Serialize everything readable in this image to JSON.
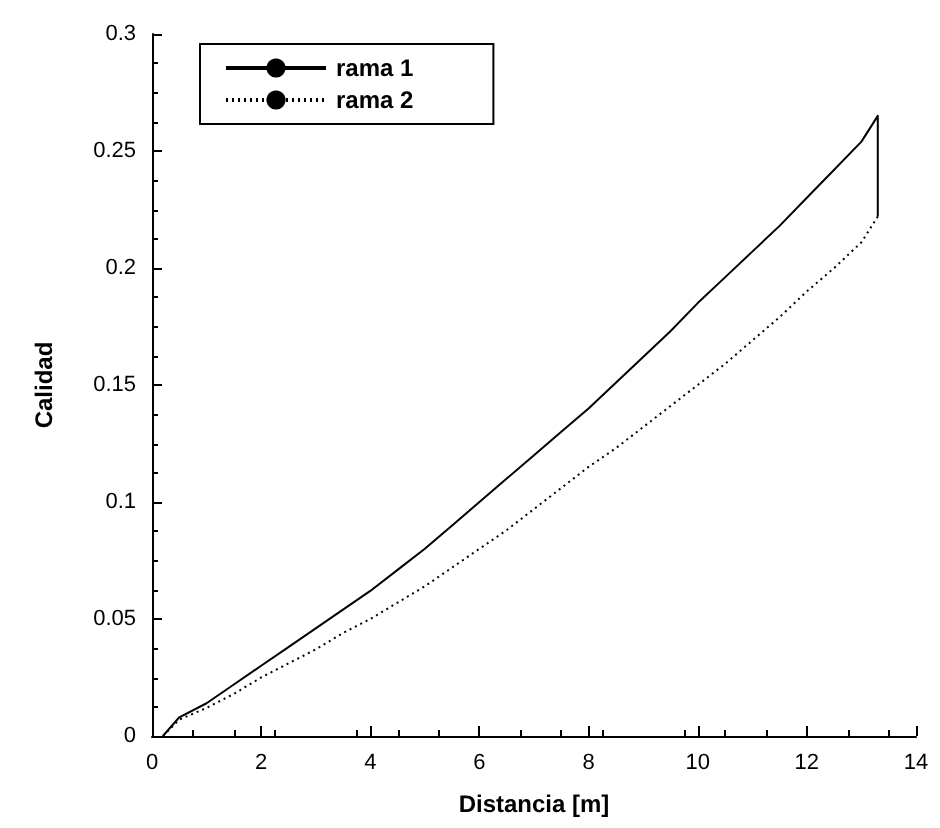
{
  "chart_data": {
    "type": "line",
    "xlabel": "Distancia [m]",
    "ylabel": "Calidad",
    "xlim": [
      0,
      14
    ],
    "xticks": [
      0,
      2,
      4,
      6,
      8,
      10,
      12,
      14
    ],
    "ylim": [
      0,
      0.3
    ],
    "yticks": [
      0,
      0.05,
      0.1,
      0.15,
      0.2,
      0.25,
      0.3
    ],
    "grid": false,
    "legend": "top left",
    "marker": "none",
    "series": [
      {
        "name": "rama 1",
        "color": "#000000",
        "line_style": "solid",
        "x": [
          0.2,
          0.5,
          1,
          1.5,
          2,
          2.5,
          3,
          3.5,
          4,
          4.5,
          5,
          5.5,
          6,
          6.5,
          7,
          7.5,
          8,
          8.5,
          9,
          9.5,
          10,
          10.5,
          11,
          11.5,
          12,
          12.5,
          13,
          13.3,
          13.3
        ],
        "values": [
          0,
          0.008,
          0.014,
          0.022,
          0.03,
          0.038,
          0.046,
          0.054,
          0.062,
          0.071,
          0.08,
          0.09,
          0.1,
          0.11,
          0.12,
          0.13,
          0.14,
          0.151,
          0.162,
          0.173,
          0.185,
          0.196,
          0.207,
          0.218,
          0.23,
          0.242,
          0.254,
          0.265,
          0.222
        ]
      },
      {
        "name": "rama 2",
        "color": "#000000",
        "line_style": "dotted",
        "x": [
          0.2,
          0.5,
          1,
          1.5,
          2,
          2.5,
          3,
          3.5,
          4,
          4.5,
          5,
          5.5,
          6,
          6.5,
          7,
          7.5,
          8,
          8.5,
          9,
          9.5,
          10,
          10.5,
          11,
          11.5,
          12,
          12.5,
          13,
          13.3
        ],
        "values": [
          0,
          0.007,
          0.012,
          0.018,
          0.025,
          0.031,
          0.037,
          0.044,
          0.05,
          0.057,
          0.064,
          0.072,
          0.08,
          0.088,
          0.097,
          0.106,
          0.115,
          0.123,
          0.132,
          0.141,
          0.15,
          0.159,
          0.169,
          0.179,
          0.19,
          0.2,
          0.211,
          0.222
        ]
      }
    ]
  }
}
